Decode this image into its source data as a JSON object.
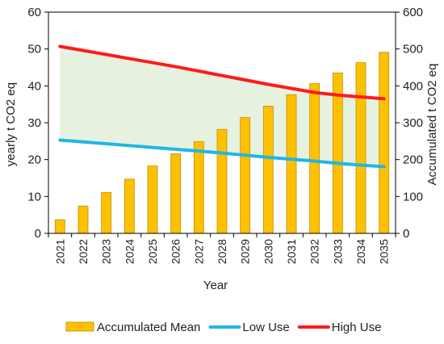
{
  "chart_data": {
    "type": "bar",
    "categories": [
      "2021",
      "2022",
      "2023",
      "2024",
      "2025",
      "2026",
      "2027",
      "2028",
      "2029",
      "2030",
      "2031",
      "2032",
      "2033",
      "2034",
      "2035"
    ],
    "xlabel": "Year",
    "ylabel_left": "yearly t CO2 eq",
    "ylabel_right": "Accumulated t CO2 eq",
    "ylim_left": [
      0,
      60
    ],
    "ylim_right": [
      0,
      600
    ],
    "yticks_left": [
      0,
      10,
      20,
      30,
      40,
      50,
      60
    ],
    "yticks_right": [
      0,
      100,
      200,
      300,
      400,
      500,
      600
    ],
    "grid": false,
    "legend_position": "bottom",
    "shaded_region": {
      "between": [
        "Low Use",
        "High Use"
      ],
      "color": "#e2f0d9"
    },
    "series": [
      {
        "name": "Accumulated Mean",
        "type": "bar",
        "axis": "right",
        "color": "#ffc000",
        "border": "#bf9000",
        "values": [
          37,
          74,
          111,
          147,
          183,
          216,
          249,
          282,
          314,
          345,
          376,
          406,
          435,
          463,
          491
        ]
      },
      {
        "name": "Low Use",
        "type": "line",
        "axis": "left",
        "color": "#1fb6e8",
        "values": [
          25.3,
          24.8,
          24.3,
          23.8,
          23.3,
          22.8,
          22.3,
          21.8,
          21.2,
          20.6,
          20.1,
          19.6,
          19.0,
          18.5,
          18.1
        ]
      },
      {
        "name": "High Use",
        "type": "line",
        "axis": "left",
        "color": "#ff1a1a",
        "values": [
          50.7,
          49.6,
          48.5,
          47.4,
          46.3,
          45.2,
          44.0,
          42.8,
          41.6,
          40.4,
          39.3,
          38.2,
          37.5,
          37.0,
          36.5
        ]
      }
    ]
  }
}
